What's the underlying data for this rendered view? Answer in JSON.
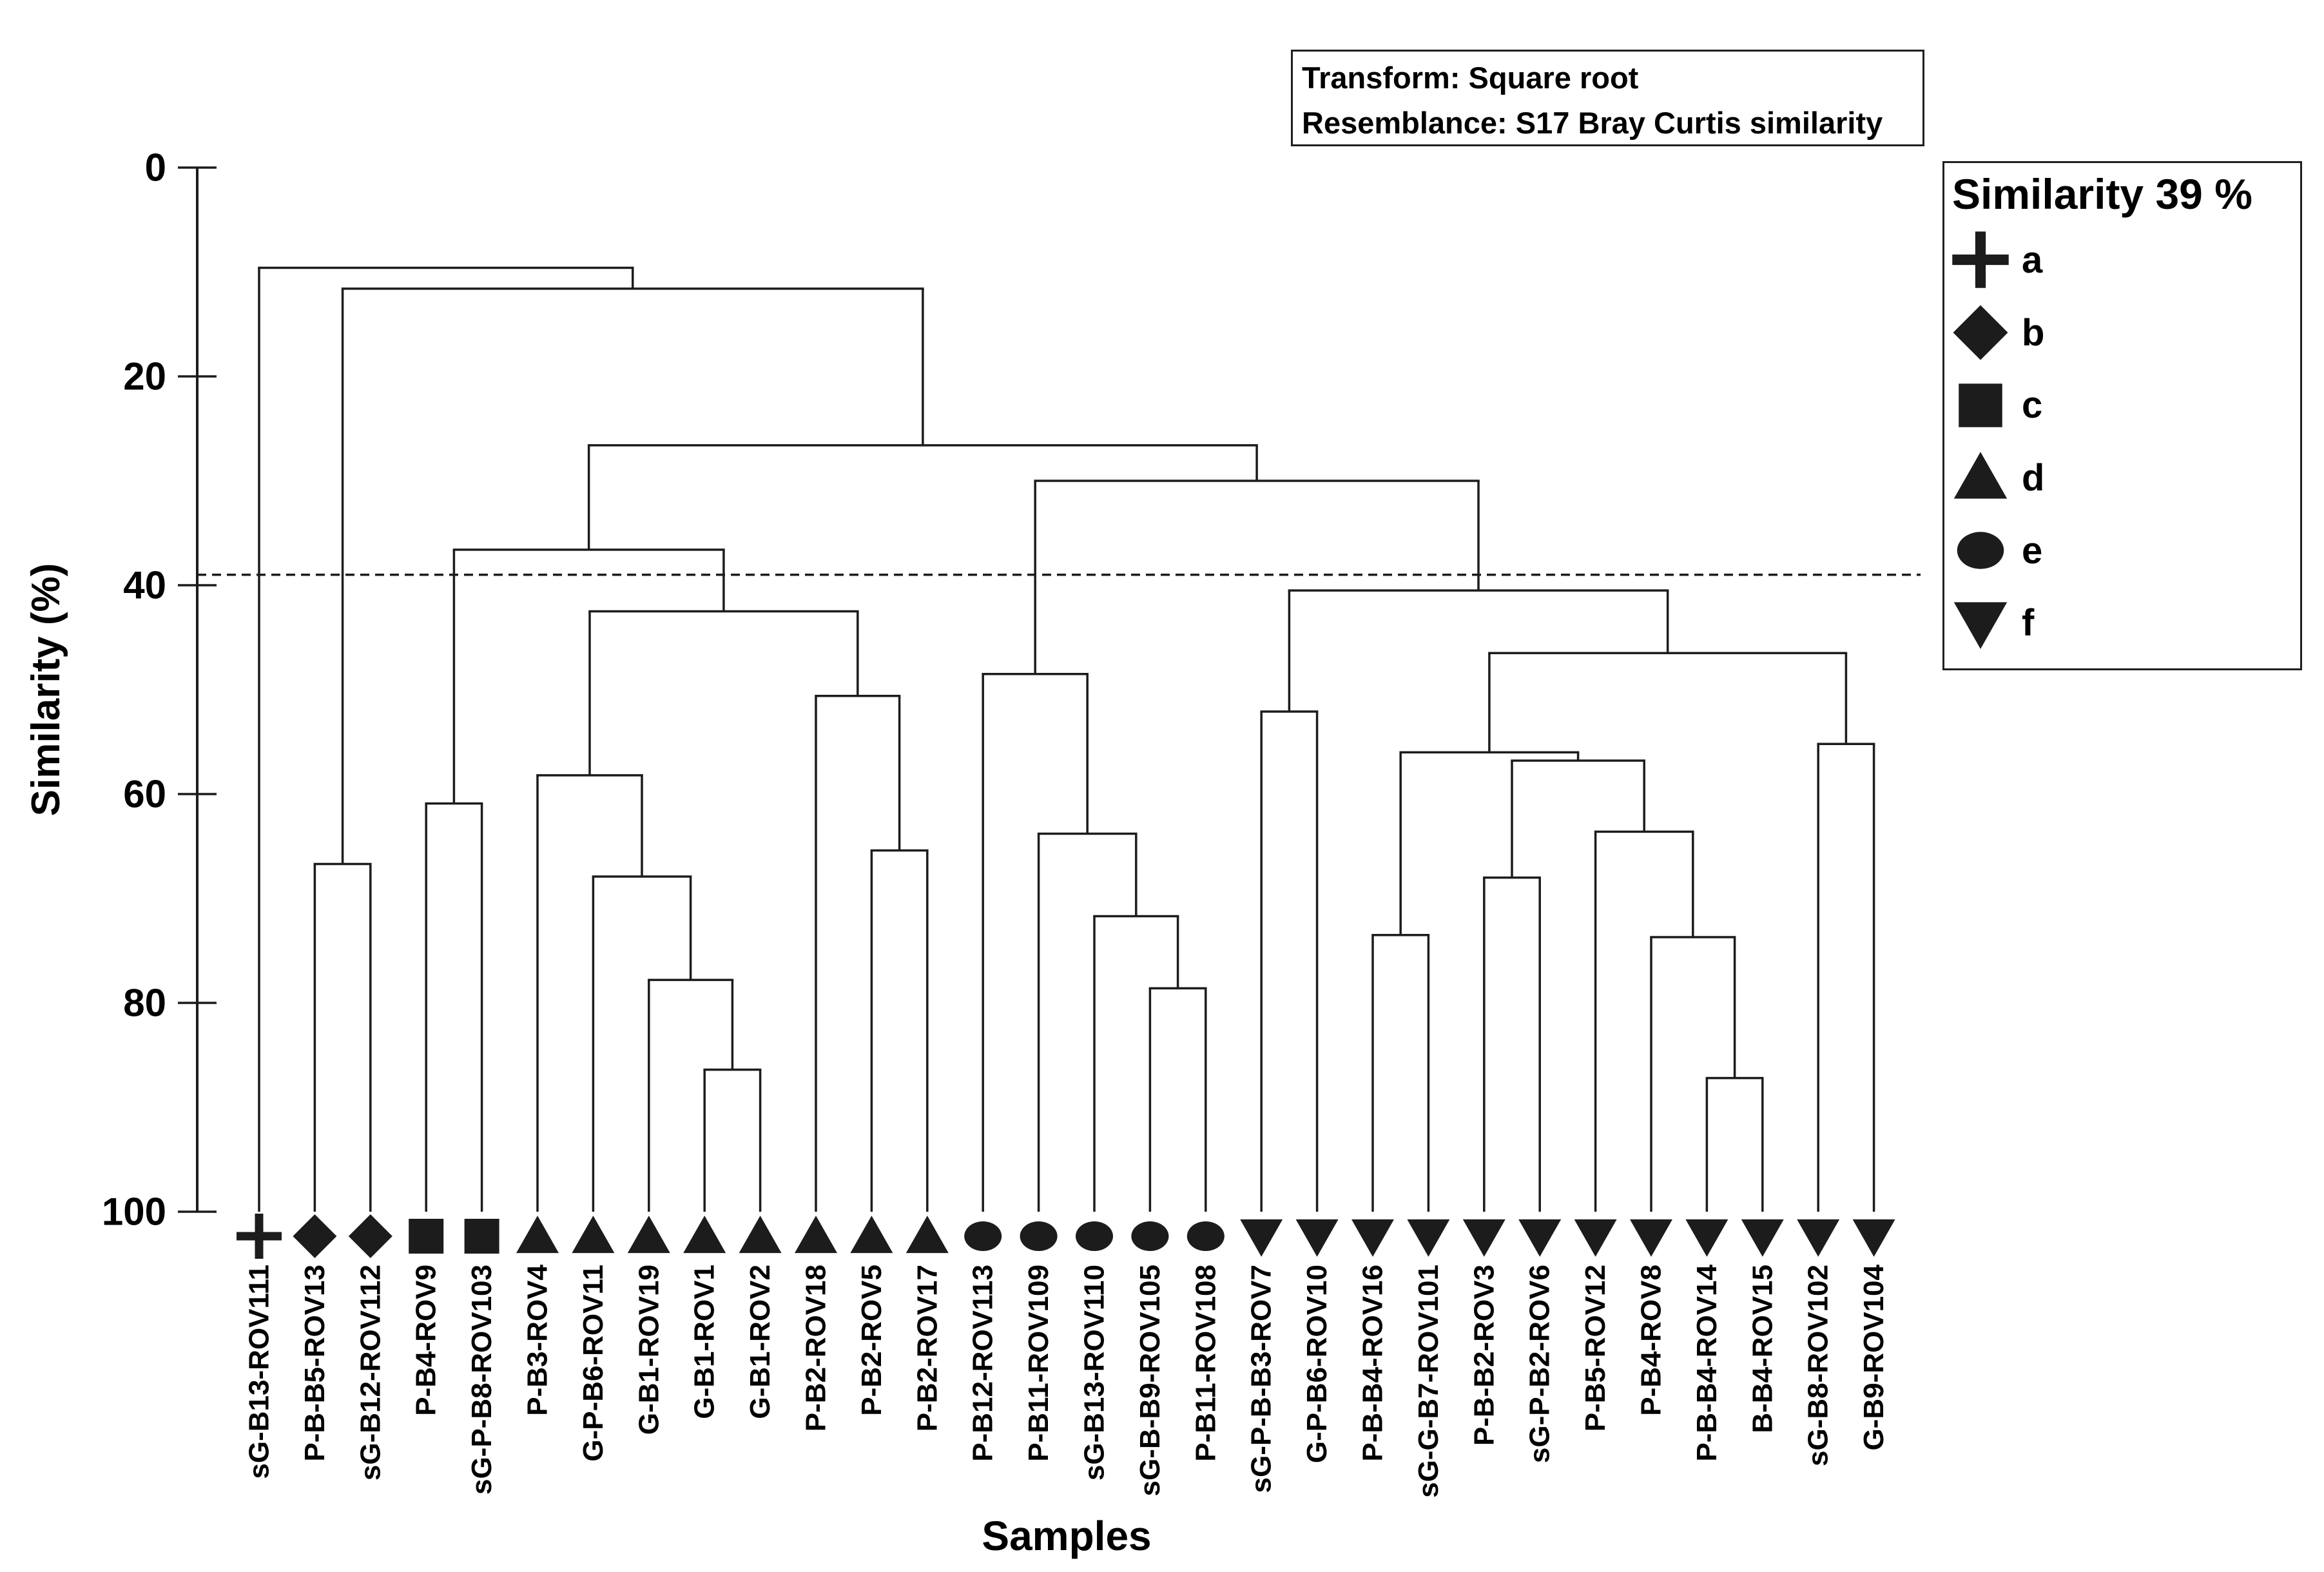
{
  "info_box": {
    "line1": "Transform: Square root",
    "line2": "Resemblance: S17 Bray Curtis similarity"
  },
  "legend": {
    "title": "Similarity 39 %",
    "items": [
      {
        "symbol": "plus",
        "label": "a"
      },
      {
        "symbol": "diamond",
        "label": "b"
      },
      {
        "symbol": "square",
        "label": "c"
      },
      {
        "symbol": "triangle-up",
        "label": "d"
      },
      {
        "symbol": "circle",
        "label": "e"
      },
      {
        "symbol": "triangle-down",
        "label": "f"
      }
    ]
  },
  "chart_data": {
    "type": "dendrogram",
    "title": "",
    "xlabel": "Samples",
    "ylabel": "Similarity (%)",
    "y_axis": {
      "ticks": [
        0,
        20,
        40,
        60,
        80,
        100
      ],
      "range": [
        0,
        100
      ],
      "orientation": "0 at top, 100 at bottom"
    },
    "cut_line_similarity_percent": 39,
    "legend_position": "right",
    "grid": false,
    "samples": [
      {
        "label": "sG-B13-ROV111",
        "symbol": "plus",
        "group": "a"
      },
      {
        "label": "P-B-B5-ROV13",
        "symbol": "diamond",
        "group": "b"
      },
      {
        "label": "sG-B12-ROV112",
        "symbol": "diamond",
        "group": "b"
      },
      {
        "label": "P-B4-ROV9",
        "symbol": "square",
        "group": "c"
      },
      {
        "label": "sG-P-B8-ROV103",
        "symbol": "square",
        "group": "c"
      },
      {
        "label": "P-B3-ROV4",
        "symbol": "triangle-up",
        "group": "d"
      },
      {
        "label": "G-P-B6-ROV11",
        "symbol": "triangle-up",
        "group": "d"
      },
      {
        "label": "G-B1-ROV19",
        "symbol": "triangle-up",
        "group": "d"
      },
      {
        "label": "G-B1-ROV1",
        "symbol": "triangle-up",
        "group": "d"
      },
      {
        "label": "G-B1-ROV2",
        "symbol": "triangle-up",
        "group": "d"
      },
      {
        "label": "P-B2-ROV18",
        "symbol": "triangle-up",
        "group": "d"
      },
      {
        "label": "P-B2-ROV5",
        "symbol": "triangle-up",
        "group": "d"
      },
      {
        "label": "P-B2-ROV17",
        "symbol": "triangle-up",
        "group": "d"
      },
      {
        "label": "P-B12-ROV113",
        "symbol": "circle",
        "group": "e"
      },
      {
        "label": "P-B11-ROV109",
        "symbol": "circle",
        "group": "e"
      },
      {
        "label": "sG-B13-ROV110",
        "symbol": "circle",
        "group": "e"
      },
      {
        "label": "sG-B-B9-ROV105",
        "symbol": "circle",
        "group": "e"
      },
      {
        "label": "P-B11-ROV108",
        "symbol": "circle",
        "group": "e"
      },
      {
        "label": "sG-P-B-B3-ROV7",
        "symbol": "triangle-down",
        "group": "f"
      },
      {
        "label": "G-P-B6-ROV10",
        "symbol": "triangle-down",
        "group": "f"
      },
      {
        "label": "P-B-B4-ROV16",
        "symbol": "triangle-down",
        "group": "f"
      },
      {
        "label": "sG-G-B7-ROV101",
        "symbol": "triangle-down",
        "group": "f"
      },
      {
        "label": "P-B-B2-ROV3",
        "symbol": "triangle-down",
        "group": "f"
      },
      {
        "label": "sG-P-B2-ROV6",
        "symbol": "triangle-down",
        "group": "f"
      },
      {
        "label": "P-B5-ROV12",
        "symbol": "triangle-down",
        "group": "f"
      },
      {
        "label": "P-B4-ROV8",
        "symbol": "triangle-down",
        "group": "f"
      },
      {
        "label": "P-B-B4-ROV14",
        "symbol": "triangle-down",
        "group": "f"
      },
      {
        "label": "B-B4-ROV15",
        "symbol": "triangle-down",
        "group": "f"
      },
      {
        "label": "sG-B8-ROV102",
        "symbol": "triangle-down",
        "group": "f"
      },
      {
        "label": "G-B9-ROV104",
        "symbol": "triangle-down",
        "group": "f"
      }
    ],
    "tree": {
      "s": 9.6,
      "c": [
        {
          "leaf": 0
        },
        {
          "s": 11.6,
          "c": [
            {
              "s": 66.7,
              "c": [
                {
                  "leaf": 1
                },
                {
                  "leaf": 2
                }
              ]
            },
            {
              "s": 26.6,
              "c": [
                {
                  "s": 36.6,
                  "c": [
                    {
                      "s": 60.9,
                      "c": [
                        {
                          "leaf": 3
                        },
                        {
                          "leaf": 4
                        }
                      ]
                    },
                    {
                      "s": 42.5,
                      "c": [
                        {
                          "s": 58.2,
                          "c": [
                            {
                              "leaf": 5
                            },
                            {
                              "s": 67.9,
                              "c": [
                                {
                                  "leaf": 6
                                },
                                {
                                  "s": 77.8,
                                  "c": [
                                    {
                                      "leaf": 7
                                    },
                                    {
                                      "s": 86.4,
                                      "c": [
                                        {
                                          "leaf": 8
                                        },
                                        {
                                          "leaf": 9
                                        }
                                      ]
                                    }
                                  ]
                                }
                              ]
                            }
                          ]
                        },
                        {
                          "s": 50.6,
                          "c": [
                            {
                              "leaf": 10
                            },
                            {
                              "s": 65.4,
                              "c": [
                                {
                                  "leaf": 11
                                },
                                {
                                  "leaf": 12
                                }
                              ]
                            }
                          ]
                        }
                      ]
                    }
                  ]
                },
                {
                  "s": 30.0,
                  "c": [
                    {
                      "s": 48.5,
                      "c": [
                        {
                          "leaf": 13
                        },
                        {
                          "s": 63.8,
                          "c": [
                            {
                              "leaf": 14
                            },
                            {
                              "s": 71.7,
                              "c": [
                                {
                                  "leaf": 15
                                },
                                {
                                  "s": 78.6,
                                  "c": [
                                    {
                                      "leaf": 16
                                    },
                                    {
                                      "leaf": 17
                                    }
                                  ]
                                }
                              ]
                            }
                          ]
                        }
                      ]
                    },
                    {
                      "s": 40.5,
                      "c": [
                        {
                          "s": 52.1,
                          "c": [
                            {
                              "leaf": 18
                            },
                            {
                              "leaf": 19
                            }
                          ]
                        },
                        {
                          "s": 46.5,
                          "c": [
                            {
                              "s": 56.0,
                              "c": [
                                {
                                  "s": 73.5,
                                  "c": [
                                    {
                                      "leaf": 20
                                    },
                                    {
                                      "leaf": 21
                                    }
                                  ]
                                },
                                {
                                  "s": 56.8,
                                  "c": [
                                    {
                                      "s": 68.0,
                                      "c": [
                                        {
                                          "leaf": 22
                                        },
                                        {
                                          "leaf": 23
                                        }
                                      ]
                                    },
                                    {
                                      "s": 63.6,
                                      "c": [
                                        {
                                          "leaf": 24
                                        },
                                        {
                                          "s": 73.7,
                                          "c": [
                                            {
                                              "leaf": 25
                                            },
                                            {
                                              "s": 87.2,
                                              "c": [
                                                {
                                                  "leaf": 26
                                                },
                                                {
                                                  "leaf": 27
                                                }
                                              ]
                                            }
                                          ]
                                        }
                                      ]
                                    }
                                  ]
                                }
                              ]
                            },
                            {
                              "s": 55.2,
                              "c": [
                                {
                                  "leaf": 28
                                },
                                {
                                  "leaf": 29
                                }
                              ]
                            }
                          ]
                        }
                      ]
                    }
                  ]
                }
              ]
            }
          ]
        }
      ]
    }
  }
}
